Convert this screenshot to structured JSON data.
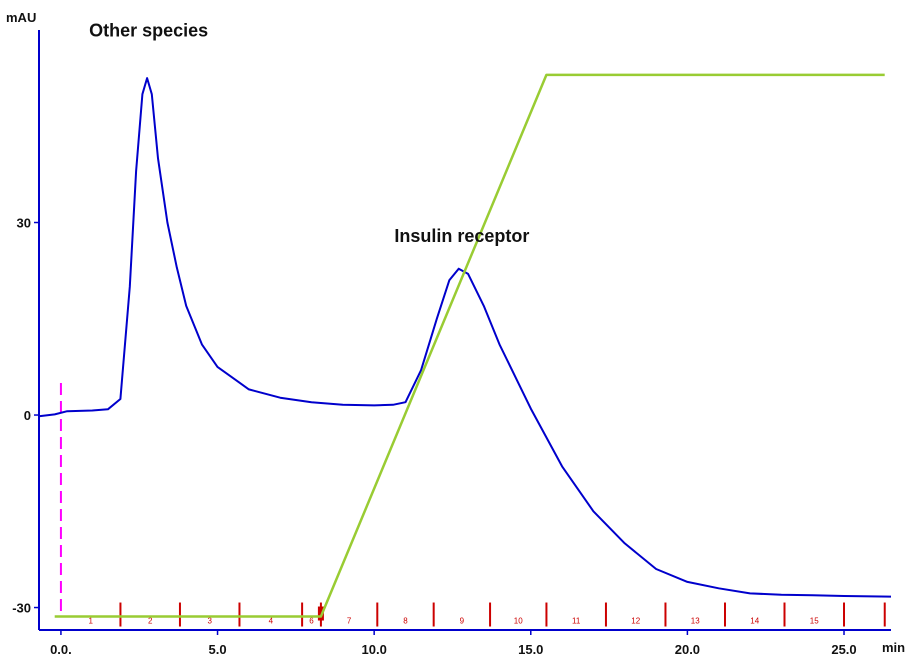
{
  "chart_data": {
    "type": "line",
    "ylabel": "mAU",
    "xlabel": "min",
    "x_ticks": [
      {
        "value": 0,
        "label": "0.0."
      },
      {
        "value": 5,
        "label": "5.0"
      },
      {
        "value": 10,
        "label": "10.0"
      },
      {
        "value": 15,
        "label": "15.0"
      },
      {
        "value": 20,
        "label": "20.0"
      },
      {
        "value": 25,
        "label": "25.0"
      }
    ],
    "y_ticks": [
      {
        "value": 30,
        "label": "30"
      },
      {
        "value": 0,
        "label": "0"
      },
      {
        "value": -30,
        "label": "-30"
      }
    ],
    "xlim": [
      -0.7,
      26.5
    ],
    "ylim": [
      -33.5,
      60
    ],
    "annotations": [
      {
        "text": "Other species",
        "x": 2.8,
        "y": 59
      },
      {
        "text": "Insulin receptor",
        "x": 12.8,
        "y": 27
      }
    ],
    "injection_marker": {
      "x": 0.0,
      "y_range": [
        -31.5,
        5.0
      ],
      "color": "#ff00ff"
    },
    "series": [
      {
        "color": "#0000cc",
        "x": [
          -0.7,
          -0.2,
          0.2,
          1.0,
          1.5,
          1.9,
          2.2,
          2.4,
          2.6,
          2.75,
          2.9,
          3.1,
          3.4,
          3.7,
          4.0,
          4.5,
          5.0,
          6.0,
          7.0,
          8.0,
          9.0,
          10.0,
          10.6,
          11.0,
          11.5,
          12.0,
          12.4,
          12.7,
          13.0,
          13.5,
          14.0,
          15.0,
          16.0,
          17.0,
          18.0,
          19.0,
          20.0,
          21.0,
          22.0,
          23.0,
          24.0,
          25.0,
          26.5
        ],
        "y": [
          -0.2,
          0.1,
          0.6,
          0.7,
          0.9,
          2.5,
          20.0,
          38.0,
          50.0,
          52.5,
          50.0,
          40.0,
          30.0,
          23.0,
          17.0,
          11.0,
          7.5,
          4.0,
          2.7,
          2.0,
          1.6,
          1.5,
          1.6,
          2.0,
          7.0,
          15.0,
          21.0,
          22.8,
          22.0,
          17.0,
          11.0,
          1.0,
          -8.0,
          -15.0,
          -20.0,
          -24.0,
          -26.0,
          -27.0,
          -27.8,
          -28.0,
          -28.1,
          -28.2,
          -28.3
        ]
      },
      {
        "color": "#99cc33",
        "x": [
          -0.2,
          8.3,
          15.5,
          26.3
        ],
        "y": [
          -31.4,
          -31.4,
          53.0,
          53.0
        ]
      }
    ],
    "fractions": {
      "color": "#cc0000",
      "axis_y": -31.4,
      "boundaries": [
        1.9,
        3.8,
        5.7,
        7.7,
        8.3,
        10.1,
        11.9,
        13.7,
        15.5,
        17.4,
        19.3,
        21.2,
        23.1,
        25.0,
        26.3
      ],
      "labels": [
        "1",
        "2",
        "3",
        "4",
        "6",
        "7",
        "8",
        "9",
        "10",
        "11",
        "12",
        "13",
        "14",
        "15"
      ]
    }
  }
}
